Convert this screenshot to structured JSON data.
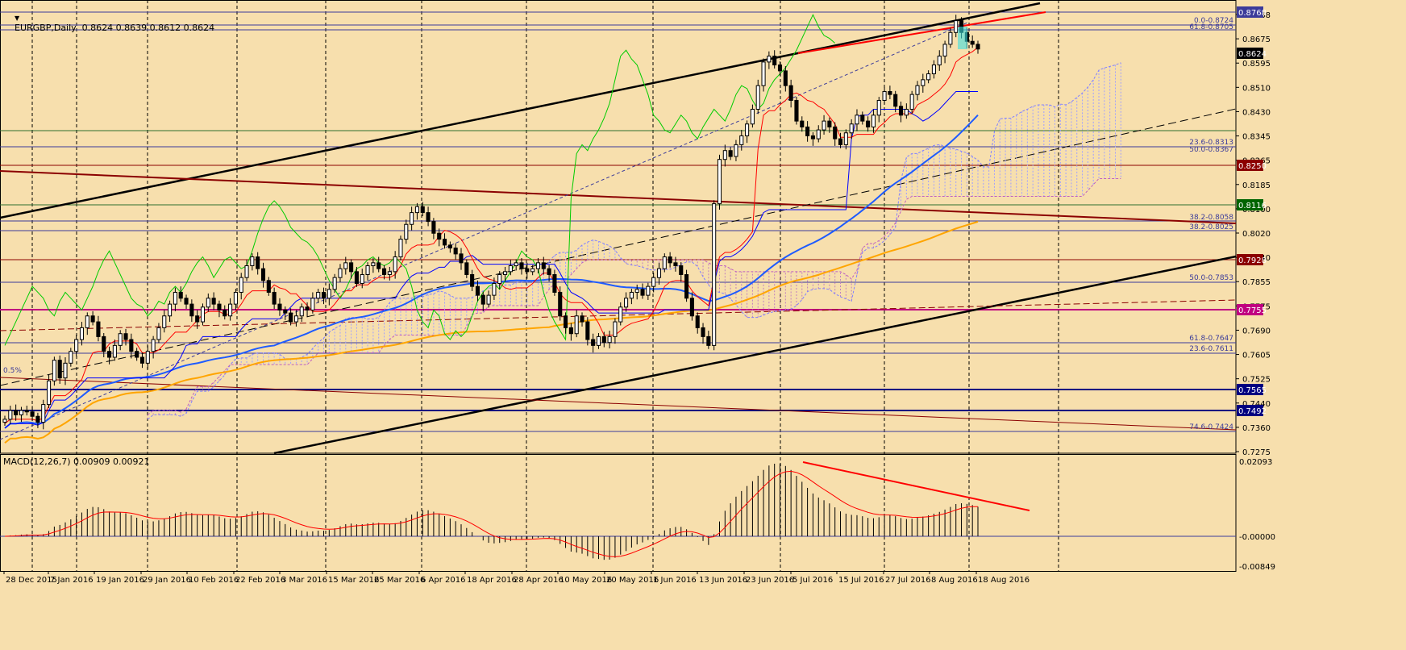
{
  "header": {
    "symbol_line": "EURGBP,Daily  0.8624 0.8639 0.8612 0.8624",
    "current_price": "0.8624"
  },
  "colors": {
    "background": "#f7dfad",
    "bull_candle": "#ffffff",
    "bear_candle": "#000000",
    "tenkan": "#ff0000",
    "kijun": "#0000ff",
    "chikou": "#00cc00",
    "ma_blue": "#1e5bff",
    "ma_orange": "#ffa500",
    "fib_line": "#4b4b99",
    "pink_line": "#ff00ff"
  },
  "price_axis": {
    "labels": [
      "0.8768",
      "0.8675",
      "0.8595",
      "0.8510",
      "0.8430",
      "0.8345",
      "0.8265",
      "0.8185",
      "0.8100",
      "0.8020",
      "0.7940",
      "0.7855",
      "0.7775",
      "0.7690",
      "0.7605",
      "0.7525",
      "0.7440",
      "0.7360",
      "0.7275"
    ],
    "boxed_levels": [
      {
        "text": "0.8768",
        "color": "#3b3b9a"
      },
      {
        "text": "0.8624",
        "color": "#000000"
      },
      {
        "text": "0.8250",
        "color": "#8b0000"
      },
      {
        "text": "0.8116",
        "color": "#006400"
      },
      {
        "text": "0.7928",
        "color": "#8b0000"
      },
      {
        "text": "0.7755",
        "color": "#c00080"
      },
      {
        "text": "0.7565",
        "color": "#000080"
      },
      {
        "text": "0.7492",
        "color": "#000080"
      }
    ]
  },
  "fib_labels": [
    "0.0-0.8724",
    "61.8-0.8705",
    "50.0-0.8367",
    "23.6-0.8313",
    "38.2-0.8058",
    "38.2-0.8025",
    "50.0-0.7853",
    "61.8-0.7647",
    "23.6-0.7611",
    "74.6-0.7424",
    "0.5%"
  ],
  "macd": {
    "label": "MACD(12,26,7) 0.00909 0.00921",
    "axis_labels": [
      "0.02093",
      "-0.00000",
      "-0.00849"
    ]
  },
  "date_axis": [
    "28 Dec 2015",
    "7 Jan 2016",
    "19 Jan 2016",
    "29 Jan 2016",
    "10 Feb 2016",
    "22 Feb 2016",
    "3 Mar 2016",
    "15 Mar 2016",
    "25 Mar 2016",
    "6 Apr 2016",
    "18 Apr 2016",
    "28 Apr 2016",
    "10 May 2016",
    "20 May 2016",
    "1 Jun 2016",
    "13 Jun 2016",
    "23 Jun 2016",
    "5 Jul 2016",
    "15 Jul 2016",
    "27 Jul 2016",
    "8 Aug 2016",
    "18 Aug 2016"
  ],
  "chart_data": {
    "type": "candlestick",
    "symbol": "EURGBP",
    "timeframe": "Daily",
    "ohlc_last": {
      "open": 0.8624,
      "high": 0.8639,
      "low": 0.8612,
      "close": 0.8624
    },
    "ylim": [
      0.7255,
      0.879
    ],
    "closes": [
      0.737,
      0.74,
      0.7385,
      0.74,
      0.7395,
      0.738,
      0.736,
      0.742,
      0.75,
      0.757,
      0.751,
      0.756,
      0.76,
      0.764,
      0.768,
      0.772,
      0.77,
      0.765,
      0.76,
      0.758,
      0.762,
      0.766,
      0.764,
      0.76,
      0.758,
      0.756,
      0.76,
      0.764,
      0.768,
      0.772,
      0.776,
      0.78,
      0.778,
      0.776,
      0.772,
      0.77,
      0.775,
      0.778,
      0.776,
      0.774,
      0.772,
      0.776,
      0.78,
      0.785,
      0.789,
      0.792,
      0.788,
      0.784,
      0.78,
      0.776,
      0.774,
      0.773,
      0.77,
      0.772,
      0.775,
      0.774,
      0.778,
      0.78,
      0.778,
      0.781,
      0.785,
      0.788,
      0.79,
      0.787,
      0.783,
      0.786,
      0.789,
      0.79,
      0.788,
      0.786,
      0.787,
      0.792,
      0.798,
      0.803,
      0.807,
      0.809,
      0.807,
      0.804,
      0.8,
      0.798,
      0.796,
      0.795,
      0.793,
      0.79,
      0.786,
      0.782,
      0.779,
      0.776,
      0.779,
      0.783,
      0.786,
      0.787,
      0.789,
      0.79,
      0.788,
      0.787,
      0.788,
      0.79,
      0.788,
      0.786,
      0.78,
      0.772,
      0.768,
      0.766,
      0.772,
      0.77,
      0.764,
      0.762,
      0.765,
      0.763,
      0.765,
      0.77,
      0.775,
      0.778,
      0.78,
      0.781,
      0.779,
      0.782,
      0.785,
      0.788,
      0.792,
      0.79,
      0.789,
      0.786,
      0.778,
      0.772,
      0.768,
      0.765,
      0.762,
      0.81,
      0.825,
      0.828,
      0.826,
      0.83,
      0.833,
      0.837,
      0.842,
      0.85,
      0.858,
      0.86,
      0.857,
      0.855,
      0.85,
      0.845,
      0.838,
      0.836,
      0.833,
      0.832,
      0.835,
      0.838,
      0.836,
      0.832,
      0.83,
      0.834,
      0.837,
      0.84,
      0.838,
      0.836,
      0.84,
      0.845,
      0.848,
      0.847,
      0.843,
      0.84,
      0.842,
      0.847,
      0.85,
      0.852,
      0.854,
      0.857,
      0.86,
      0.864,
      0.868,
      0.872,
      0.868,
      0.865,
      0.864,
      0.8624
    ]
  }
}
